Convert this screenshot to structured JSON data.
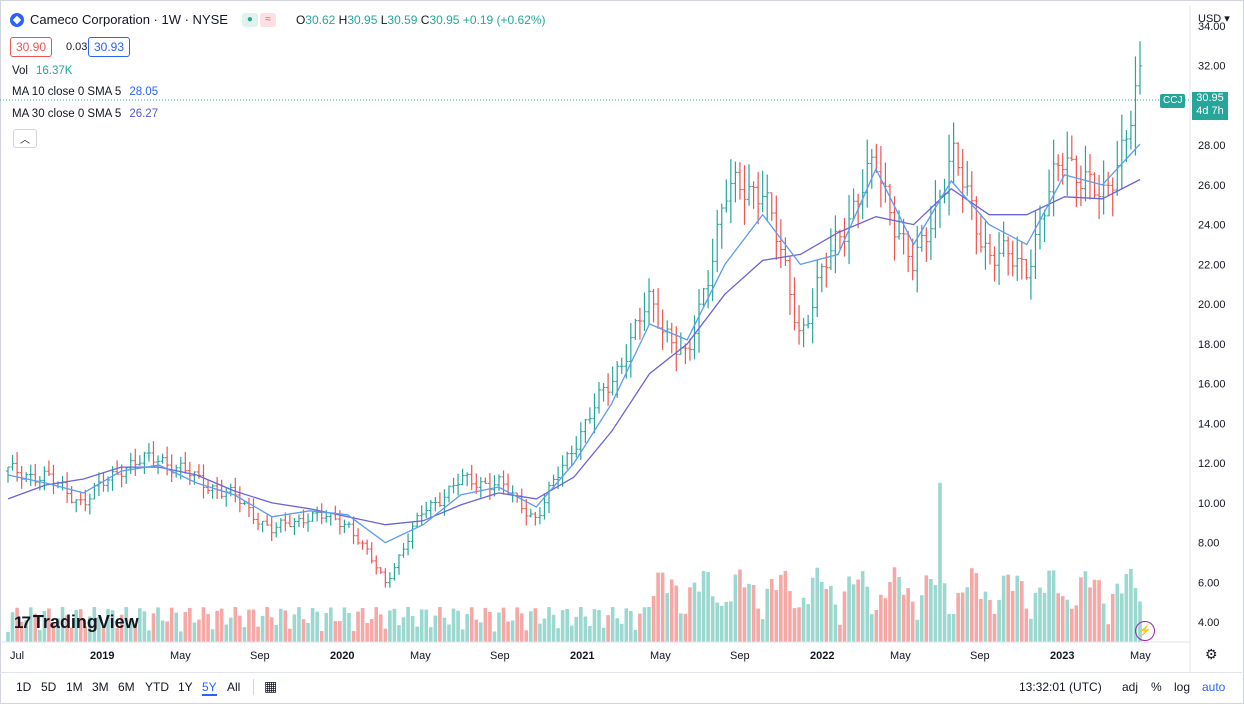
{
  "header": {
    "title": "Cameco Corporation · 1W · NYSE",
    "ohlc_o_label": "O",
    "ohlc_o": "30.62",
    "ohlc_h_label": "H",
    "ohlc_h": "30.95",
    "ohlc_l_label": "L",
    "ohlc_l": "30.59",
    "ohlc_c_label": "C",
    "ohlc_c": "30.95",
    "change": "+0.19 (+0.62%)"
  },
  "quote": {
    "bid": "30.90",
    "spread": "0.03",
    "ask": "30.93"
  },
  "indicators": {
    "vol_label": "Vol",
    "vol_value": "16.37K",
    "ma10_label": "MA 10 close 0 SMA 5",
    "ma10_value": "28.05",
    "ma30_label": "MA 30 close 0 SMA 5",
    "ma30_value": "26.27"
  },
  "currency": "USD",
  "last_price_tag": {
    "symbol": "CCJ",
    "price": "30.95",
    "countdown": "4d 7h"
  },
  "bottom_bar": {
    "ranges": [
      "1D",
      "5D",
      "1M",
      "3M",
      "6M",
      "YTD",
      "1Y",
      "5Y",
      "All"
    ],
    "active_range": "5Y",
    "time": "13:32:01 (UTC)",
    "options": [
      "adj",
      "%",
      "log",
      "auto"
    ]
  },
  "branding": "TradingView",
  "colors": {
    "up": "#26a69a",
    "down": "#ef5350",
    "ma10": "#5b9cf6",
    "ma30": "#6a63d8",
    "accent": "#2962ff"
  },
  "icons": [
    "collapse-chevron-icon",
    "calendar-range-icon",
    "settings-gear-icon",
    "lightning-icon"
  ],
  "chart_data": {
    "type": "line",
    "title": "Cameco Corporation · 1W · NYSE",
    "xlabel": "",
    "ylabel": "",
    "x_ticks": [
      "Jul",
      "2019",
      "May",
      "Sep",
      "2020",
      "May",
      "Sep",
      "2021",
      "May",
      "Sep",
      "2022",
      "May",
      "Sep",
      "2023",
      "May"
    ],
    "y_ticks": [
      "4.00",
      "6.00",
      "8.00",
      "10.00",
      "12.00",
      "14.00",
      "16.00",
      "18.00",
      "20.00",
      "22.00",
      "24.00",
      "26.00",
      "28.00",
      "30.00",
      "32.00",
      "34.00"
    ],
    "ylim": [
      3,
      35
    ],
    "grid": false,
    "x": [
      "2018-07",
      "2018-09",
      "2018-11",
      "2019-01",
      "2019-03",
      "2019-05",
      "2019-07",
      "2019-09",
      "2019-11",
      "2020-01",
      "2020-03",
      "2020-05",
      "2020-07",
      "2020-09",
      "2020-11",
      "2021-01",
      "2021-03",
      "2021-05",
      "2021-07",
      "2021-09",
      "2021-11",
      "2022-01",
      "2022-03",
      "2022-05",
      "2022-07",
      "2022-09",
      "2022-11",
      "2023-01",
      "2023-03",
      "2023-05",
      "2023-06"
    ],
    "series": [
      {
        "name": "CCJ",
        "values": [
          11.6,
          11.3,
          10.0,
          11.8,
          12.3,
          11.2,
          10.3,
          8.6,
          9.4,
          9.0,
          6.0,
          9.6,
          11.1,
          11.0,
          9.2,
          13.0,
          16.2,
          20.1,
          17.0,
          25.5,
          26.0,
          18.5,
          23.5,
          27.0,
          21.6,
          27.5,
          22.5,
          22.0,
          27.7,
          25.0,
          30.95
        ]
      },
      {
        "name": "MA 10",
        "values": [
          11.4,
          11.0,
          10.5,
          11.6,
          11.9,
          11.0,
          10.4,
          9.3,
          9.6,
          9.4,
          8.0,
          8.9,
          10.4,
          10.8,
          9.8,
          12.0,
          15.0,
          19.0,
          18.2,
          22.0,
          24.5,
          22.0,
          22.5,
          26.8,
          23.0,
          26.2,
          24.0,
          23.0,
          26.5,
          26.0,
          28.05
        ]
      },
      {
        "name": "MA 30",
        "values": [
          10.2,
          10.9,
          11.2,
          11.8,
          11.8,
          11.4,
          10.6,
          10.0,
          9.7,
          9.3,
          8.9,
          9.1,
          9.9,
          10.5,
          10.2,
          11.3,
          13.6,
          16.5,
          18.0,
          20.5,
          22.2,
          22.5,
          23.6,
          24.4,
          24.0,
          25.8,
          24.5,
          24.5,
          25.4,
          25.3,
          26.27
        ]
      }
    ],
    "volume_peak_value_label": "16.37K"
  }
}
